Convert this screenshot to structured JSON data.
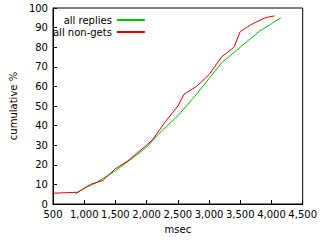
{
  "chart_data": {
    "type": "line",
    "x_label": "msec",
    "y_label": "cumulative %",
    "xlim": [
      500,
      4500
    ],
    "xticks": [
      500,
      1000,
      1500,
      2000,
      2500,
      3000,
      3500,
      4000,
      4500
    ],
    "ylim": [
      0,
      100
    ],
    "yticks": [
      0,
      10,
      20,
      30,
      40,
      50,
      60,
      70,
      80,
      90,
      100
    ],
    "grid": false,
    "legend": "upper left",
    "series": [
      {
        "name": "all replies",
        "color": "#00c000",
        "x": [
          850,
          1000,
          1200,
          1500,
          1800,
          2000,
          2200,
          2500,
          2800,
          3000,
          3200,
          3500,
          3800,
          4000,
          4150
        ],
        "values": [
          5,
          8,
          11,
          17,
          24,
          29,
          36,
          45,
          56,
          64,
          72,
          80,
          88,
          92,
          95
        ]
      },
      {
        "name": "all non-gets",
        "color": "#e00000",
        "x": [
          500,
          900,
          1000,
          1100,
          1300,
          1500,
          1700,
          2000,
          2100,
          2300,
          2500,
          2600,
          2800,
          3000,
          3200,
          3400,
          3500,
          3700,
          3900,
          4050
        ],
        "values": [
          5.5,
          6,
          8,
          10,
          12,
          18,
          22,
          30,
          33,
          42,
          50,
          56,
          60,
          66,
          75,
          80,
          88,
          92,
          95,
          96
        ]
      }
    ]
  }
}
